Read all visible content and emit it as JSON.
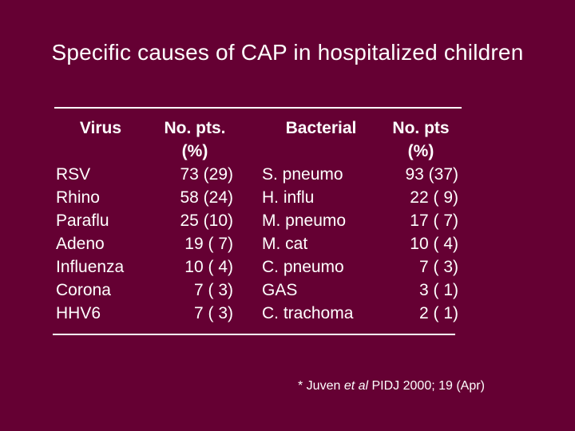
{
  "title": "Specific causes of CAP in hospitalized children",
  "table": {
    "headers": {
      "virus": "Virus",
      "virus_pts_line1": "No. pts.",
      "virus_pts_line2": "(%)",
      "bacterial": "Bacterial",
      "bact_pts_line1": "No. pts",
      "bact_pts_line2": "(%)"
    },
    "virus": [
      "RSV",
      "Rhino",
      "Paraflu",
      "Adeno",
      "Influenza",
      "Corona",
      "HHV6"
    ],
    "virus_pts": [
      "73 (29)",
      "58 (24)",
      "25 (10)",
      "19 ( 7)",
      "10 ( 4)",
      "7 ( 3)",
      "7 ( 3)"
    ],
    "bacterial": [
      "S. pneumo",
      "H. influ",
      "M. pneumo",
      "M. cat",
      "C. pneumo",
      "GAS",
      "C. trachoma"
    ],
    "bact_pts": [
      "93 (37)",
      "22 ( 9)",
      "17 ( 7)",
      "10 ( 4)",
      "7 ( 3)",
      "3 ( 1)",
      "2 ( 1)"
    ]
  },
  "footnote": {
    "prefix": "* Juven ",
    "italic": "et al",
    "suffix": " PIDJ 2000; 19 (Apr)"
  }
}
